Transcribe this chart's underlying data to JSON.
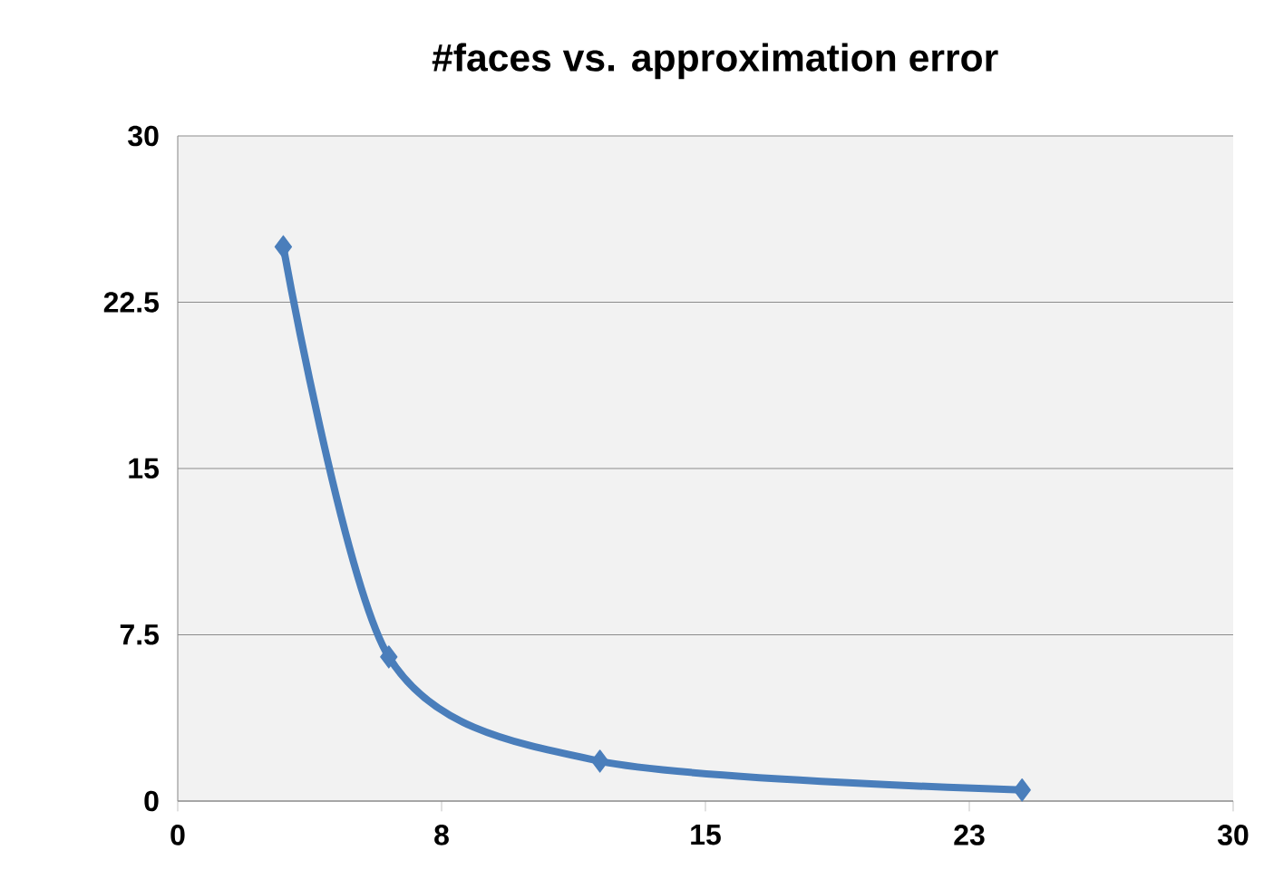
{
  "chart_data": {
    "type": "line",
    "title": "#faces vs. approximation error",
    "x": [
      3,
      6,
      12,
      24
    ],
    "values": [
      25,
      6.5,
      1.8,
      0.5
    ],
    "color": "#4a7ebb",
    "xlim": [
      0,
      30
    ],
    "ylim": [
      0,
      30
    ],
    "xticks": [
      0,
      {
        "value": 7.5,
        "label": "8"
      },
      15,
      {
        "value": 22.5,
        "label": "23"
      },
      30
    ],
    "yticks": [
      0,
      7.5,
      15,
      22.5,
      30
    ],
    "grid": "y",
    "marker": "diamond"
  }
}
